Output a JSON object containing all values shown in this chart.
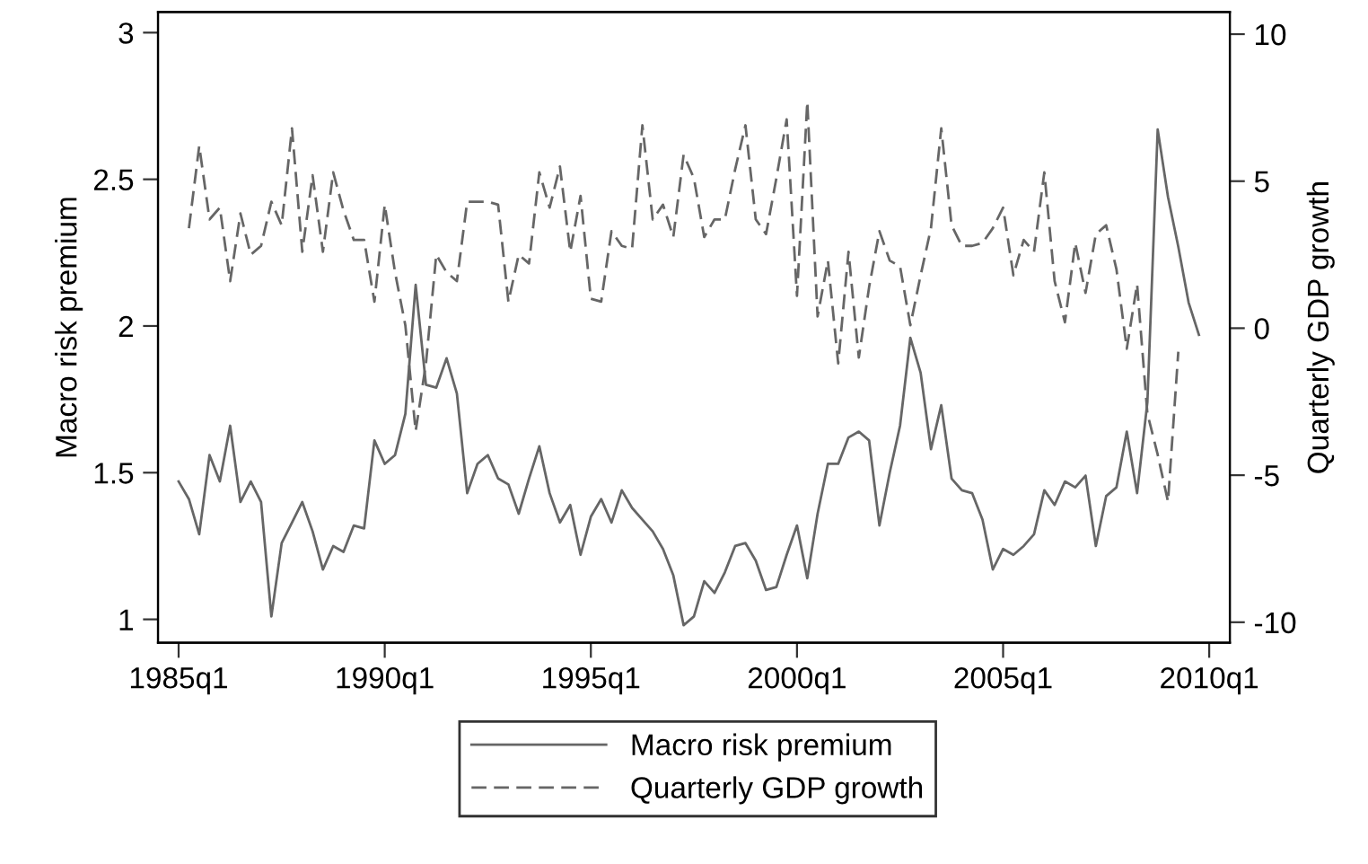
{
  "chart_data": {
    "type": "line",
    "xlabel": null,
    "ylabel": "Macro risk premium",
    "y2label": "Quarterly GDP growth",
    "categories": [
      "1985q1",
      null,
      null,
      null,
      null,
      null,
      null,
      null,
      null,
      null,
      null,
      null,
      null,
      null,
      null,
      null,
      null,
      null,
      null,
      null,
      "1990q1",
      null,
      null,
      null,
      null,
      null,
      null,
      null,
      null,
      null,
      null,
      null,
      null,
      null,
      null,
      null,
      null,
      null,
      null,
      null,
      "1995q1",
      null,
      null,
      null,
      null,
      null,
      null,
      null,
      null,
      null,
      null,
      null,
      null,
      null,
      null,
      null,
      null,
      null,
      null,
      null,
      "2000q1",
      null,
      null,
      null,
      null,
      null,
      null,
      null,
      null,
      null,
      null,
      null,
      null,
      null,
      null,
      null,
      null,
      null,
      null,
      null,
      "2005q1",
      null,
      null,
      null,
      null,
      null,
      null,
      null,
      null,
      null,
      null,
      null,
      null,
      null,
      null,
      null,
      null,
      null,
      null,
      null,
      "2010q1"
    ],
    "series": [
      {
        "name": "Macro risk premium",
        "color": "#666666",
        "line_style": "solid",
        "values": [
          1.47,
          1.41,
          1.29,
          1.56,
          1.47,
          1.66,
          1.4,
          1.47,
          1.4,
          1.01,
          1.26,
          1.33,
          1.4,
          1.3,
          1.17,
          1.25,
          1.23,
          1.32,
          1.31,
          1.61,
          1.53,
          1.56,
          1.7,
          2.14,
          1.8,
          1.79,
          1.89,
          1.77,
          1.43,
          1.53,
          1.56,
          1.48,
          1.46,
          1.36,
          1.48,
          1.59,
          1.43,
          1.33,
          1.39,
          1.22,
          1.35,
          1.41,
          1.33,
          1.44,
          1.38,
          1.34,
          1.3,
          1.24,
          1.15,
          0.98,
          1.01,
          1.13,
          1.09,
          1.16,
          1.25,
          1.26,
          1.2,
          1.1,
          1.11,
          1.22,
          1.32,
          1.14,
          1.36,
          1.53,
          1.53,
          1.62,
          1.64,
          1.61,
          1.32,
          1.5,
          1.66,
          1.96,
          1.84,
          1.58,
          1.73,
          1.48,
          1.44,
          1.43,
          1.34,
          1.17,
          1.24,
          1.22,
          1.25,
          1.29,
          1.44,
          1.39,
          1.47,
          1.45,
          1.49,
          1.25,
          1.42,
          1.45,
          1.64,
          1.43,
          1.74,
          2.67,
          2.44,
          2.27,
          2.08,
          1.97,
          null
        ]
      },
      {
        "name": "Quarterly GDP growth",
        "color": "#666666",
        "line_style": "dashed",
        "axis": "y2",
        "values": [
          null,
          3.4,
          6.2,
          3.7,
          4.1,
          1.6,
          3.9,
          2.5,
          2.8,
          4.3,
          3.5,
          6.8,
          2.6,
          5.2,
          2.6,
          5.3,
          4.0,
          3.0,
          3.0,
          0.9,
          4.2,
          1.9,
          0.1,
          -3.5,
          -1.2,
          2.5,
          1.9,
          1.6,
          4.3,
          4.3,
          4.3,
          4.2,
          0.9,
          2.5,
          2.2,
          5.3,
          4.1,
          5.5,
          2.6,
          4.5,
          1.0,
          0.9,
          3.3,
          2.8,
          2.7,
          6.9,
          3.7,
          4.2,
          3.1,
          5.9,
          5.1,
          3.1,
          3.7,
          3.7,
          5.4,
          6.9,
          3.7,
          3.2,
          5.1,
          7.1,
          1.1,
          7.7,
          0.4,
          2.3,
          -1.2,
          2.6,
          -1.0,
          1.4,
          3.3,
          2.3,
          2.1,
          0.1,
          1.8,
          3.4,
          6.8,
          3.5,
          2.8,
          2.8,
          2.9,
          3.4,
          4.1,
          1.8,
          3.0,
          2.6,
          5.3,
          1.6,
          0.2,
          2.9,
          1.2,
          3.2,
          3.5,
          2.0,
          -0.7,
          1.5,
          -2.9,
          -4.3,
          -5.9,
          -0.8,
          null,
          null,
          null
        ]
      }
    ],
    "ylim": [
      0.92,
      3.07
    ],
    "yticks": [
      1,
      1.5,
      2,
      2.5,
      3
    ],
    "y2lim": [
      -10.7,
      10.75
    ],
    "y2ticks": [
      -10,
      -5,
      0,
      5,
      10
    ],
    "grid": false,
    "legend": "bottom",
    "marker": "none"
  }
}
